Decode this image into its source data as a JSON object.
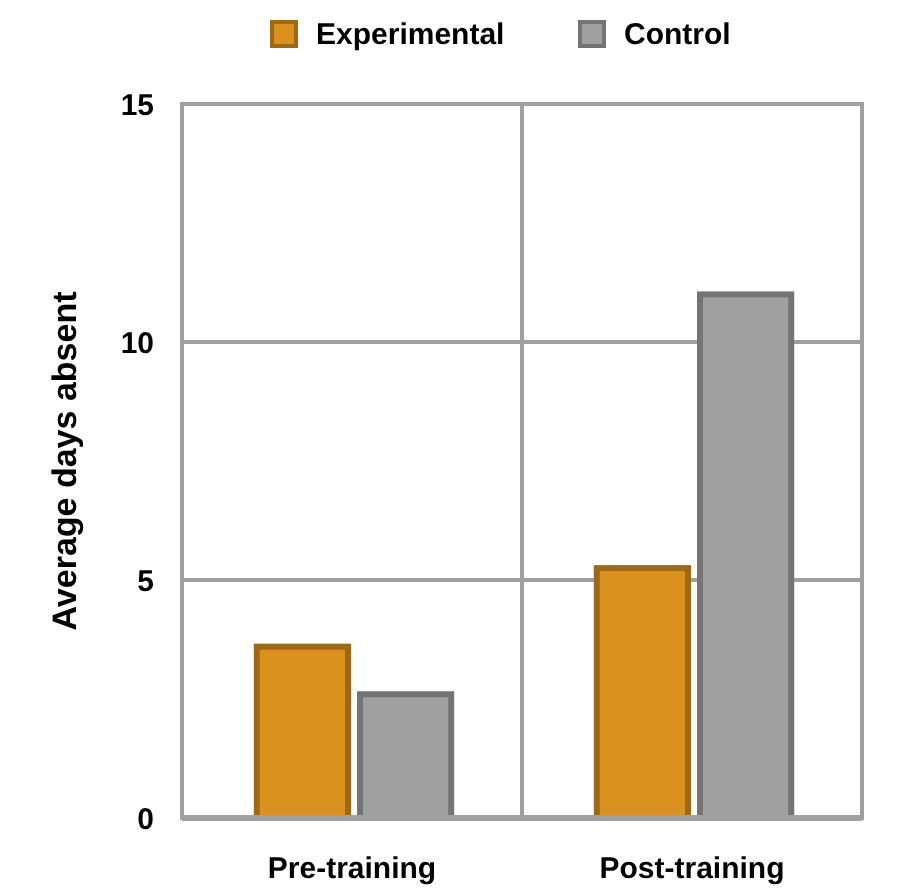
{
  "chart_data": {
    "type": "bar",
    "ylabel": "Average days absent",
    "categories": [
      "Pre-training",
      "Post-training"
    ],
    "series": [
      {
        "name": "Experimental",
        "color": "#da911e",
        "values": [
          3.6,
          5.25
        ]
      },
      {
        "name": "Control",
        "color": "#a0a0a0",
        "values": [
          2.6,
          11
        ]
      }
    ],
    "ylim": [
      0,
      15
    ],
    "yticks": [
      0,
      5,
      10,
      15
    ],
    "grid": true,
    "legend": "top"
  }
}
